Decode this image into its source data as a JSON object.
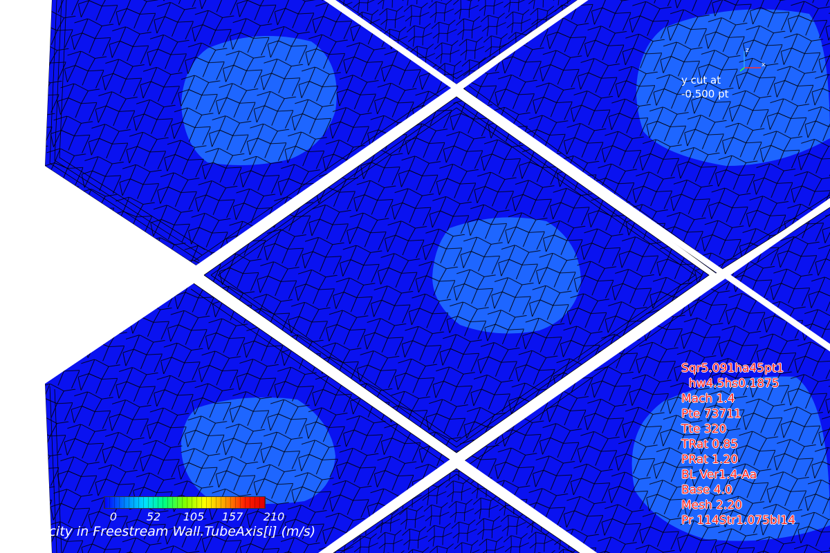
{
  "viewport": {
    "cut_label_line1": "y cut at",
    "cut_label_line2": "-0.500 pt",
    "params": [
      "Sqr5.091ha45pt1",
      "  hw4.5hs0.1875",
      "Mach 1.4",
      "Pte 73711",
      "Tte 320",
      "TRat 0.85",
      "PRat 1.20",
      "BL Ver1.4-Aa",
      "Base 4.0",
      "Mesh 2.20",
      "Pr 114Str1.075bl14"
    ],
    "colors": {
      "background": "#ffffff",
      "surface": "#0a12f0",
      "hole": "#1e66ff",
      "mesh_line": "#000000",
      "label": "#ffffff",
      "params": "#ff2020"
    }
  },
  "legend": {
    "ticks": [
      "0",
      "52",
      "105",
      "157",
      "210"
    ],
    "caption": "Velocity in Freestream Wall.TubeAxis[i] (m/s)",
    "colormap": [
      "#0000ff",
      "#0080ff",
      "#00e0ff",
      "#00ff80",
      "#80ff00",
      "#ffff00",
      "#ffa000",
      "#ff2000",
      "#e00000"
    ]
  },
  "triad": {
    "axis_x_label": "x",
    "axis_y_label": "y",
    "axis_z_label": "z"
  }
}
